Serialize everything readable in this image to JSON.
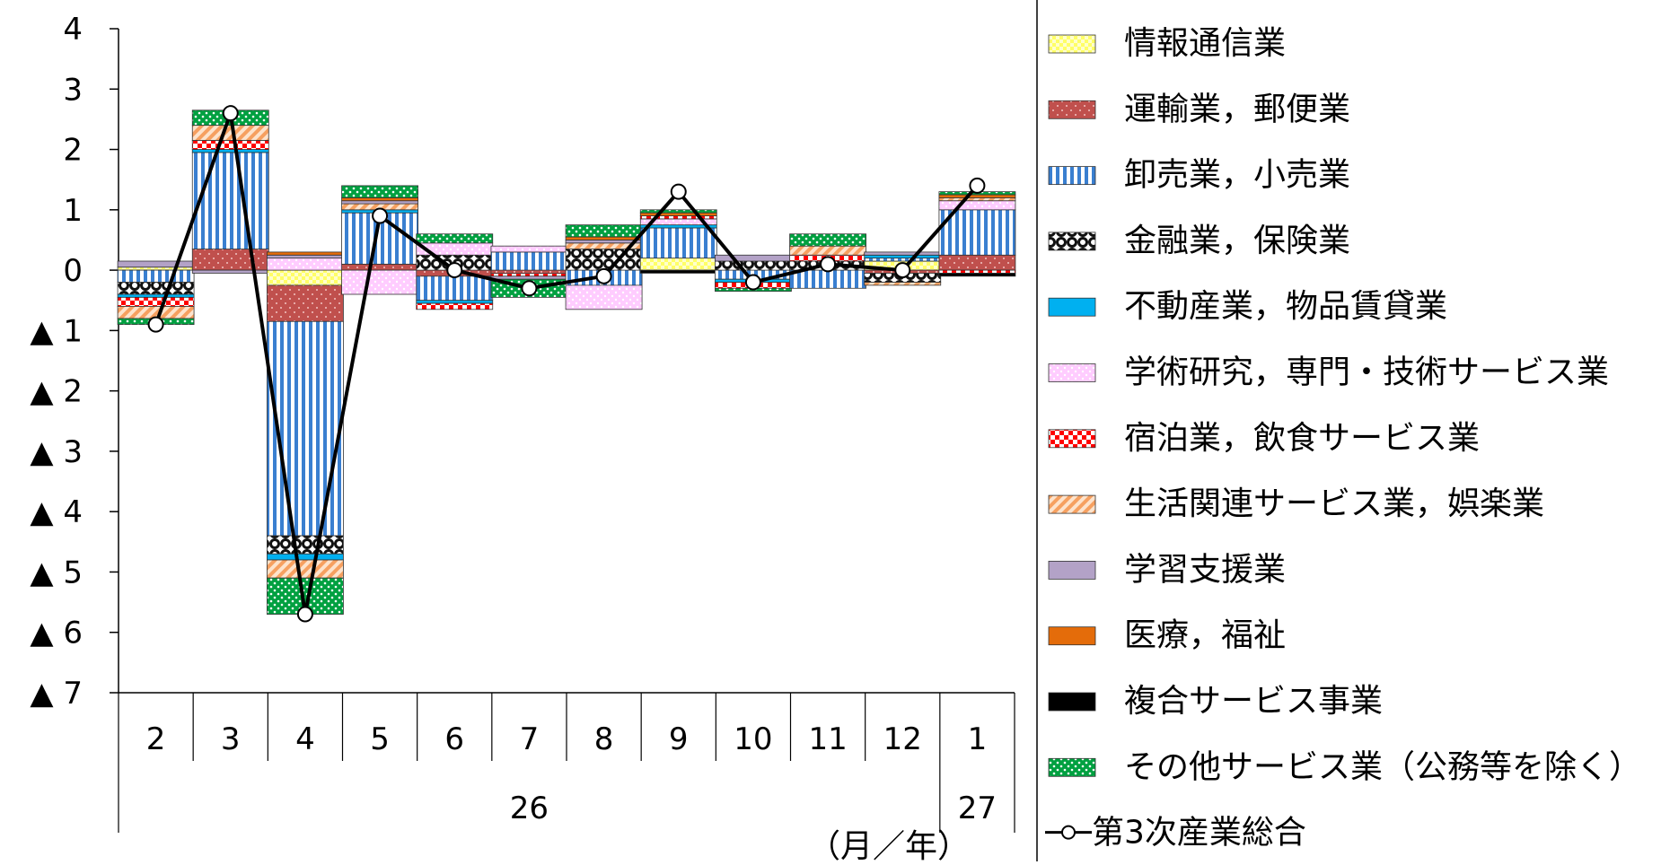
{
  "chart_data": {
    "type": "bar",
    "stacked": true,
    "title": "",
    "xlabel": "（月／年）",
    "ylabel": "",
    "ylim": [
      -7,
      4
    ],
    "y_ticks": [
      4,
      3,
      2,
      1,
      0,
      -1,
      -2,
      -3,
      -4,
      -5,
      -6,
      -7
    ],
    "y_tick_labels": [
      "4",
      "3",
      "2",
      "1",
      "0",
      "▲ 1",
      "▲ 2",
      "▲ 3",
      "▲ 4",
      "▲ 5",
      "▲ 6",
      "▲ 7"
    ],
    "categories": [
      "2",
      "3",
      "4",
      "5",
      "6",
      "7",
      "8",
      "9",
      "10",
      "11",
      "12",
      "1"
    ],
    "year_groups": [
      {
        "label": "26",
        "start": 0,
        "end": 11
      },
      {
        "label": "27",
        "start": 11,
        "end": 12
      }
    ],
    "legend_position": "right",
    "series": [
      {
        "name": "情報通信業",
        "color": "#ffff66",
        "pattern": "checker-yellow",
        "values": [
          0.05,
          0.0,
          -0.25,
          0.0,
          0.0,
          0.0,
          0.0,
          0.2,
          0.0,
          0.0,
          0.15,
          0.0
        ]
      },
      {
        "name": "運輸業，郵便業",
        "color": "#c0504d",
        "pattern": "dots-red",
        "values": [
          0.0,
          0.35,
          -0.6,
          0.1,
          -0.1,
          -0.05,
          0.0,
          0.0,
          0.0,
          0.0,
          -0.05,
          0.25
        ]
      },
      {
        "name": "卸売業，小売業",
        "color": "#4a90e2",
        "pattern": "stripes-blue",
        "values": [
          -0.2,
          1.6,
          -3.55,
          0.85,
          -0.4,
          0.3,
          -0.25,
          0.5,
          -0.15,
          -0.3,
          0.05,
          0.75
        ]
      },
      {
        "name": "金融業，保険業",
        "color": "#222222",
        "pattern": "circles-black",
        "values": [
          -0.2,
          0.0,
          -0.3,
          0.0,
          0.25,
          0.0,
          0.35,
          0.0,
          0.15,
          0.15,
          -0.15,
          0.0
        ]
      },
      {
        "name": "不動産業，物品賃貸業",
        "color": "#00b0f0",
        "pattern": "solid-cyan",
        "values": [
          -0.05,
          0.05,
          -0.1,
          0.05,
          -0.05,
          0.0,
          0.0,
          0.05,
          -0.05,
          0.0,
          0.05,
          0.0
        ]
      },
      {
        "name": "学術研究，専門・技術サービス業",
        "color": "#ffccff",
        "pattern": "dots-pink",
        "values": [
          0.0,
          0.0,
          0.2,
          -0.4,
          0.2,
          0.1,
          -0.4,
          0.1,
          0.0,
          0.0,
          0.0,
          0.15
        ]
      },
      {
        "name": "宿泊業，飲食サービス業",
        "color": "#ff0000",
        "pattern": "checker-red",
        "values": [
          -0.15,
          0.15,
          0.0,
          0.0,
          -0.1,
          -0.05,
          0.0,
          0.05,
          -0.1,
          0.1,
          0.0,
          -0.05
        ]
      },
      {
        "name": "生活関連サービス業，娯楽業",
        "color": "#fac090",
        "pattern": "diagonal-orange",
        "values": [
          -0.2,
          0.25,
          -0.3,
          0.1,
          0.0,
          0.0,
          0.1,
          0.0,
          0.0,
          0.15,
          -0.05,
          0.05
        ]
      },
      {
        "name": "学習支援業",
        "color": "#b3a2c7",
        "pattern": "solid-lavender",
        "values": [
          0.1,
          -0.05,
          0.05,
          0.05,
          0.0,
          -0.05,
          0.05,
          0.0,
          0.1,
          0.0,
          0.05,
          0.0
        ]
      },
      {
        "name": "医療，福祉",
        "color": "#e46c0a",
        "pattern": "solid-orange",
        "values": [
          0.0,
          0.0,
          0.05,
          0.05,
          0.0,
          0.0,
          0.05,
          0.05,
          0.0,
          0.0,
          0.0,
          0.05
        ]
      },
      {
        "name": "複合サービス事業",
        "color": "#000000",
        "pattern": "solid-black",
        "values": [
          0.0,
          0.0,
          0.0,
          0.0,
          0.0,
          0.0,
          0.0,
          -0.05,
          0.0,
          0.0,
          0.0,
          -0.05
        ]
      },
      {
        "name": "その他サービス業（公務等を除く）",
        "color": "#00b050",
        "pattern": "dots-green",
        "values": [
          -0.1,
          0.25,
          -0.6,
          0.2,
          0.15,
          -0.3,
          0.2,
          0.05,
          -0.05,
          0.2,
          0.0,
          0.05
        ]
      }
    ],
    "line_series": {
      "name": "第3次産業総合",
      "values": [
        -0.9,
        2.6,
        -5.7,
        0.9,
        0.0,
        -0.3,
        -0.1,
        1.3,
        -0.2,
        0.1,
        0.0,
        1.4
      ]
    }
  }
}
